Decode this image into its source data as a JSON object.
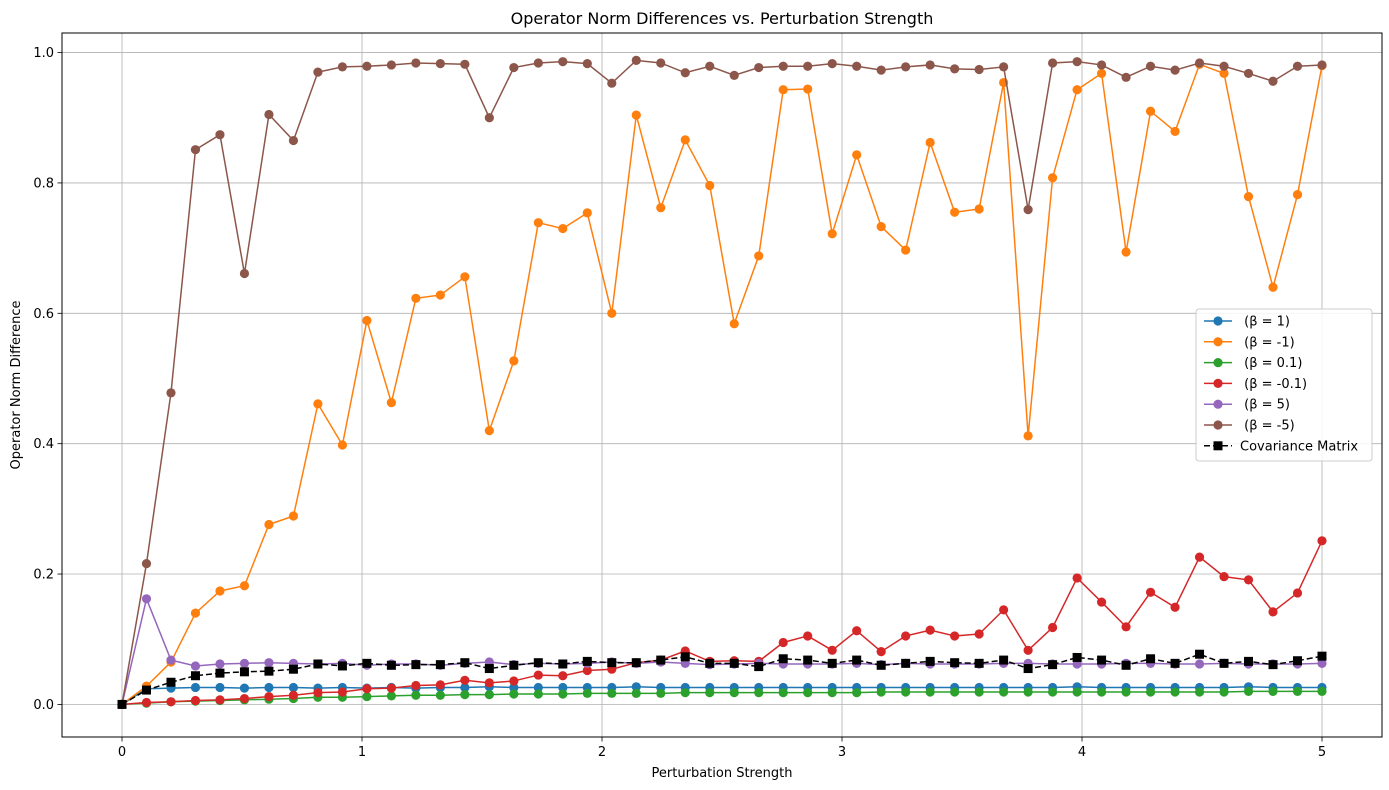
{
  "chart_data": {
    "type": "line",
    "title": "Operator Norm Differences vs. Perturbation Strength",
    "xlabel": "Perturbation Strength",
    "ylabel": "Operator Norm Difference",
    "xlim": [
      -0.25,
      5.25
    ],
    "ylim": [
      -0.05,
      1.03
    ],
    "xticks": [
      0,
      1,
      2,
      3,
      4,
      5
    ],
    "xtick_labels": [
      "0",
      "1",
      "2",
      "3",
      "4",
      "5"
    ],
    "yticks": [
      0.0,
      0.2,
      0.4,
      0.6,
      0.8,
      1.0
    ],
    "ytick_labels": [
      "0.0",
      "0.2",
      "0.4",
      "0.6",
      "0.8",
      "1.0"
    ],
    "grid": true,
    "legend_position": "center-right",
    "x_start": 0,
    "x_step": 0.10204,
    "series": [
      {
        "name": " (β = 1)",
        "color": "#1f77b4",
        "marker": "circle",
        "dashed": false,
        "values": [
          0.0,
          0.024,
          0.025,
          0.026,
          0.026,
          0.025,
          0.026,
          0.026,
          0.025,
          0.026,
          0.025,
          0.026,
          0.025,
          0.026,
          0.026,
          0.027,
          0.026,
          0.026,
          0.026,
          0.026,
          0.026,
          0.027,
          0.026,
          0.026,
          0.026,
          0.026,
          0.026,
          0.026,
          0.026,
          0.026,
          0.026,
          0.026,
          0.026,
          0.026,
          0.026,
          0.026,
          0.026,
          0.026,
          0.026,
          0.027,
          0.026,
          0.026,
          0.026,
          0.026,
          0.026,
          0.026,
          0.027,
          0.026,
          0.026,
          0.026
        ]
      },
      {
        "name": " (β = -1)",
        "color": "#ff7f0e",
        "marker": "circle",
        "dashed": false,
        "values": [
          0.0,
          0.028,
          0.065,
          0.14,
          0.174,
          0.182,
          0.276,
          0.289,
          0.461,
          0.398,
          0.589,
          0.463,
          0.623,
          0.628,
          0.656,
          0.42,
          0.527,
          0.739,
          0.73,
          0.754,
          0.6,
          0.904,
          0.762,
          0.866,
          0.796,
          0.584,
          0.688,
          0.943,
          0.944,
          0.722,
          0.843,
          0.733,
          0.697,
          0.862,
          0.755,
          0.76,
          0.954,
          0.412,
          0.808,
          0.943,
          0.968,
          0.694,
          0.91,
          0.879,
          0.982,
          0.968,
          0.779,
          0.64,
          0.782,
          0.98
        ]
      },
      {
        "name": " (β = 0.1)",
        "color": "#2ca02c",
        "marker": "circle",
        "dashed": false,
        "values": [
          0.0,
          0.002,
          0.004,
          0.005,
          0.006,
          0.007,
          0.008,
          0.009,
          0.011,
          0.011,
          0.012,
          0.013,
          0.014,
          0.014,
          0.015,
          0.015,
          0.016,
          0.016,
          0.016,
          0.017,
          0.017,
          0.017,
          0.017,
          0.018,
          0.018,
          0.018,
          0.018,
          0.018,
          0.018,
          0.018,
          0.018,
          0.019,
          0.019,
          0.019,
          0.019,
          0.019,
          0.019,
          0.019,
          0.019,
          0.019,
          0.019,
          0.019,
          0.019,
          0.019,
          0.019,
          0.019,
          0.02,
          0.02,
          0.02,
          0.02
        ]
      },
      {
        "name": " (β = -0.1)",
        "color": "#d62728",
        "marker": "circle",
        "dashed": false,
        "values": [
          0.0,
          0.003,
          0.004,
          0.006,
          0.007,
          0.009,
          0.012,
          0.014,
          0.018,
          0.019,
          0.024,
          0.025,
          0.029,
          0.03,
          0.037,
          0.033,
          0.036,
          0.045,
          0.044,
          0.052,
          0.054,
          0.064,
          0.068,
          0.082,
          0.066,
          0.067,
          0.066,
          0.095,
          0.105,
          0.083,
          0.113,
          0.081,
          0.105,
          0.114,
          0.105,
          0.108,
          0.145,
          0.083,
          0.118,
          0.194,
          0.157,
          0.119,
          0.172,
          0.149,
          0.226,
          0.196,
          0.191,
          0.142,
          0.171,
          0.251
        ]
      },
      {
        "name": " (β = 5)",
        "color": "#9467bd",
        "marker": "circle",
        "dashed": false,
        "values": [
          0.0,
          0.162,
          0.068,
          0.059,
          0.062,
          0.063,
          0.064,
          0.063,
          0.062,
          0.063,
          0.06,
          0.062,
          0.062,
          0.06,
          0.063,
          0.065,
          0.061,
          0.063,
          0.062,
          0.063,
          0.065,
          0.063,
          0.065,
          0.063,
          0.061,
          0.062,
          0.063,
          0.062,
          0.062,
          0.062,
          0.063,
          0.061,
          0.063,
          0.062,
          0.062,
          0.062,
          0.063,
          0.063,
          0.062,
          0.062,
          0.062,
          0.063,
          0.063,
          0.062,
          0.062,
          0.063,
          0.062,
          0.062,
          0.062,
          0.063
        ]
      },
      {
        "name": " (β = -5)",
        "color": "#8c564b",
        "marker": "circle",
        "dashed": false,
        "values": [
          0.0,
          0.216,
          0.478,
          0.851,
          0.874,
          0.661,
          0.905,
          0.865,
          0.97,
          0.978,
          0.979,
          0.981,
          0.984,
          0.983,
          0.982,
          0.9,
          0.977,
          0.984,
          0.986,
          0.983,
          0.953,
          0.988,
          0.984,
          0.969,
          0.979,
          0.965,
          0.977,
          0.979,
          0.979,
          0.983,
          0.979,
          0.973,
          0.978,
          0.981,
          0.975,
          0.974,
          0.978,
          0.759,
          0.984,
          0.986,
          0.981,
          0.962,
          0.979,
          0.973,
          0.984,
          0.979,
          0.968,
          0.956,
          0.979,
          0.981
        ]
      },
      {
        "name": "Covariance Matrix",
        "color": "#000000",
        "marker": "square",
        "dashed": true,
        "values": [
          0.0,
          0.022,
          0.034,
          0.044,
          0.048,
          0.05,
          0.051,
          0.054,
          0.062,
          0.059,
          0.063,
          0.06,
          0.061,
          0.061,
          0.064,
          0.055,
          0.06,
          0.064,
          0.062,
          0.066,
          0.064,
          0.064,
          0.068,
          0.073,
          0.063,
          0.063,
          0.058,
          0.07,
          0.068,
          0.063,
          0.068,
          0.06,
          0.063,
          0.066,
          0.064,
          0.063,
          0.068,
          0.055,
          0.061,
          0.072,
          0.068,
          0.06,
          0.07,
          0.063,
          0.077,
          0.063,
          0.066,
          0.061,
          0.067,
          0.074
        ]
      }
    ]
  }
}
